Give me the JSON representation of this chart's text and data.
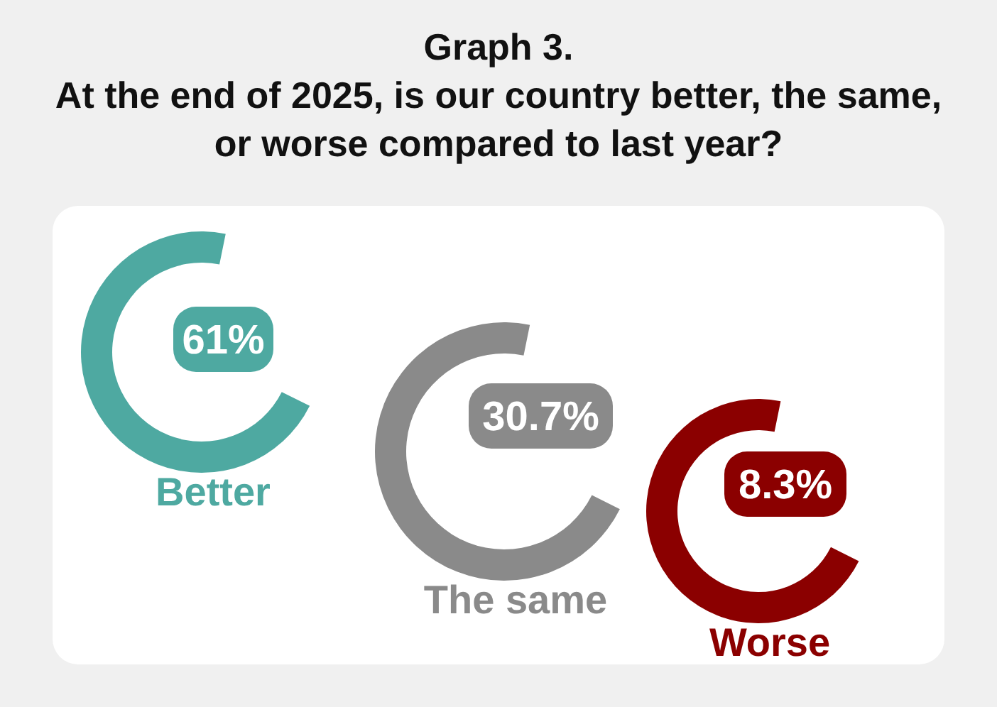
{
  "chart_data": {
    "type": "other",
    "title": "Graph 3.\nAt the end of 2025, is our country better, the same, or worse compared to last year?",
    "categories": [
      "Better",
      "The same",
      "Worse"
    ],
    "values": [
      61,
      30.7,
      8.3
    ],
    "value_labels": [
      "61%",
      "30.7%",
      "8.3%"
    ],
    "colors": [
      "#4ea9a1",
      "#8a8a8a",
      "#8b0000"
    ]
  }
}
